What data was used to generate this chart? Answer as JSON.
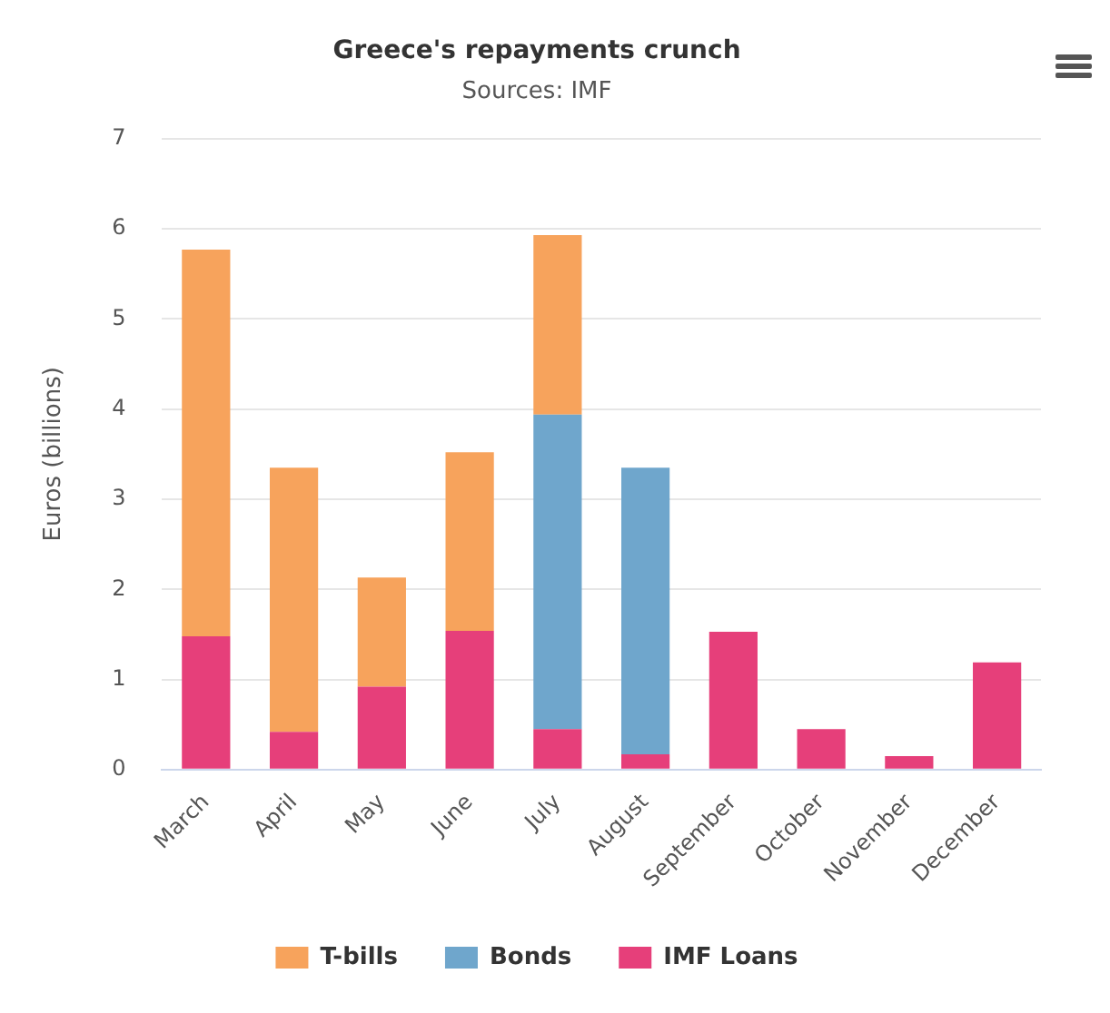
{
  "chart_data": {
    "type": "bar",
    "title": "Greece's repayments crunch",
    "subtitle": "Sources: IMF",
    "ylabel": "Euros (billions)",
    "categories": [
      "March",
      "April",
      "May",
      "June",
      "July",
      "August",
      "September",
      "October",
      "November",
      "December"
    ],
    "stacked": true,
    "series": [
      {
        "name": "IMF Loans",
        "color": "#e63f7a",
        "values": [
          1.48,
          0.42,
          0.92,
          1.54,
          0.45,
          0.17,
          1.53,
          0.45,
          0.15,
          1.19
        ]
      },
      {
        "name": "Bonds",
        "color": "#6fa6cc",
        "values": [
          null,
          null,
          null,
          null,
          3.49,
          3.18,
          null,
          null,
          null,
          null
        ]
      },
      {
        "name": "T-bills",
        "color": "#f7a35c",
        "values": [
          4.29,
          2.93,
          1.21,
          1.98,
          1.99,
          null,
          null,
          null,
          null,
          null
        ]
      }
    ],
    "ylim": [
      0,
      7
    ],
    "yticks": [
      0,
      1,
      2,
      3,
      4,
      5,
      6,
      7
    ],
    "grid": "y",
    "legend": "bottom"
  }
}
